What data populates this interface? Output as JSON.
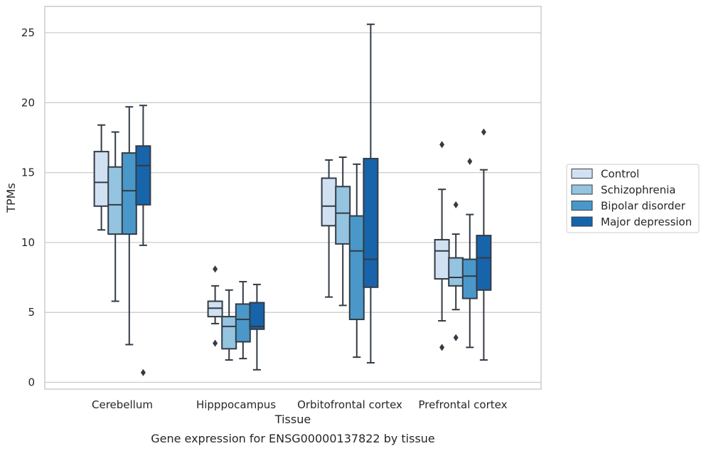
{
  "chart_data": {
    "type": "box",
    "xlabel": "Tissue",
    "ylabel": "TPMs",
    "caption": "Gene expression for ENSG00000137822 by tissue",
    "ylim": [
      -0.4,
      26.4
    ],
    "yticks": [
      0,
      5,
      10,
      15,
      20,
      25
    ],
    "grid": "horizontal",
    "legend_position": "right",
    "categories": [
      "Cerebellum",
      "Hipppocampus",
      "Orbitofrontal cortex",
      "Prefrontal cortex"
    ],
    "series": [
      {
        "name": "Control",
        "color": "#d0e1f2",
        "boxes": [
          {
            "whislo": 10.9,
            "q1": 12.6,
            "med": 14.3,
            "q3": 16.5,
            "whishi": 18.4,
            "fliers": []
          },
          {
            "whislo": 4.2,
            "q1": 4.7,
            "med": 5.3,
            "q3": 5.8,
            "whishi": 6.9,
            "fliers": [
              8.1,
              2.8
            ]
          },
          {
            "whislo": 6.1,
            "q1": 11.2,
            "med": 12.6,
            "q3": 14.6,
            "whishi": 15.9,
            "fliers": []
          },
          {
            "whislo": 4.4,
            "q1": 7.4,
            "med": 9.4,
            "q3": 10.2,
            "whishi": 13.8,
            "fliers": [
              17.0,
              2.5
            ]
          }
        ]
      },
      {
        "name": "Schizophrenia",
        "color": "#94c4df",
        "boxes": [
          {
            "whislo": 5.8,
            "q1": 10.6,
            "med": 12.7,
            "q3": 15.4,
            "whishi": 17.9,
            "fliers": []
          },
          {
            "whislo": 1.6,
            "q1": 2.4,
            "med": 4.0,
            "q3": 4.7,
            "whishi": 6.6,
            "fliers": []
          },
          {
            "whislo": 5.5,
            "q1": 9.9,
            "med": 12.1,
            "q3": 14.0,
            "whishi": 16.1,
            "fliers": []
          },
          {
            "whislo": 5.2,
            "q1": 6.9,
            "med": 7.5,
            "q3": 8.9,
            "whishi": 10.6,
            "fliers": [
              12.7,
              3.2
            ]
          }
        ]
      },
      {
        "name": "Bipolar disorder",
        "color": "#4a98c9",
        "boxes": [
          {
            "whislo": 2.7,
            "q1": 10.6,
            "med": 13.7,
            "q3": 16.4,
            "whishi": 19.7,
            "fliers": []
          },
          {
            "whislo": 1.7,
            "q1": 2.9,
            "med": 4.5,
            "q3": 5.6,
            "whishi": 7.2,
            "fliers": []
          },
          {
            "whislo": 1.8,
            "q1": 4.5,
            "med": 9.4,
            "q3": 11.9,
            "whishi": 15.6,
            "fliers": []
          },
          {
            "whislo": 2.5,
            "q1": 6.0,
            "med": 7.6,
            "q3": 8.8,
            "whishi": 12.0,
            "fliers": [
              15.8
            ]
          }
        ]
      },
      {
        "name": "Major depression",
        "color": "#1764ab",
        "boxes": [
          {
            "whislo": 9.8,
            "q1": 12.7,
            "med": 15.5,
            "q3": 16.9,
            "whishi": 19.8,
            "fliers": [
              0.7
            ]
          },
          {
            "whislo": 0.9,
            "q1": 3.8,
            "med": 4.0,
            "q3": 5.7,
            "whishi": 7.0,
            "fliers": []
          },
          {
            "whislo": 1.4,
            "q1": 6.8,
            "med": 8.8,
            "q3": 16.0,
            "whishi": 25.6,
            "fliers": []
          },
          {
            "whislo": 1.6,
            "q1": 6.6,
            "med": 8.9,
            "q3": 10.5,
            "whishi": 15.2,
            "fliers": [
              17.9
            ]
          }
        ]
      }
    ]
  }
}
